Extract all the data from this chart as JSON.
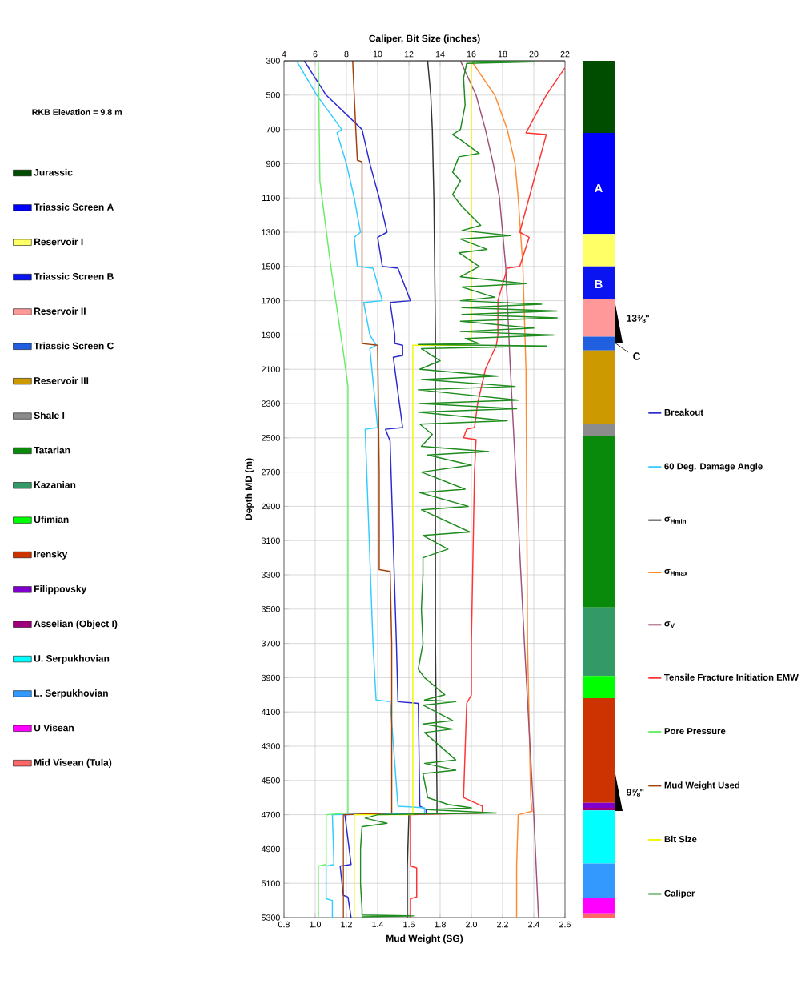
{
  "chart_data": [
    {
      "type": "line",
      "xlabel": "Mud Weight (SG)",
      "ylabel": "Depth MD (m)",
      "x2label": "Caliper, Bit Size (inches)",
      "xlim": [
        0.8,
        2.6
      ],
      "xticks": [
        0.8,
        {
          "value": 1.0,
          "label": "1.0"
        },
        1.2,
        1.4,
        1.6,
        1.8,
        {
          "value": 2.0,
          "label": "2.0"
        },
        2.2,
        2.4,
        2.6
      ],
      "x2lim": [
        4,
        22
      ],
      "x2ticks": [
        4,
        6,
        8,
        10,
        12,
        14,
        16,
        18,
        20,
        22
      ],
      "ylim": [
        5300,
        300
      ],
      "yticks": [
        300,
        500,
        700,
        900,
        1100,
        1300,
        1500,
        1700,
        1900,
        2100,
        2300,
        2500,
        2700,
        2900,
        3100,
        3300,
        3500,
        3700,
        3900,
        4100,
        4300,
        4500,
        4700,
        4900,
        5100,
        5300
      ],
      "grid": true,
      "legend": "right",
      "series": [
        {
          "name": "Breakout",
          "color": "#2a2ad0",
          "x": [
            0.93,
            1.07,
            1.3,
            1.35,
            1.41,
            1.46,
            1.4,
            1.43,
            1.53,
            1.61,
            1.48,
            1.51,
            1.51,
            1.56,
            1.56,
            1.5,
            1.56,
            1.45,
            1.48,
            1.48,
            1.52,
            1.53,
            1.66,
            1.67,
            1.71,
            1.71,
            1.19,
            1.23,
            1.16,
            1.18,
            1.21,
            1.23
          ],
          "values": [
            300,
            500,
            700,
            900,
            1100,
            1300,
            1330,
            1500,
            1510,
            1700,
            1710,
            1900,
            1950,
            1960,
            2020,
            2030,
            2440,
            2450,
            2520,
            2530,
            3700,
            4040,
            4050,
            4650,
            4670,
            4690,
            4700,
            4990,
            5000,
            5170,
            5180,
            5300
          ]
        },
        {
          "name": "60 Deg. Damage Angle",
          "color": "#33ccff",
          "x": [
            0.88,
            1.01,
            1.17,
            1.14,
            1.2,
            1.25,
            1.29,
            1.25,
            1.27,
            1.37,
            1.43,
            1.31,
            1.35,
            1.39,
            1.35,
            1.4,
            1.32,
            1.37,
            1.39,
            1.48,
            1.53,
            1.7,
            1.7,
            1.11,
            1.12,
            1.07,
            1.07,
            1.11,
            1.11
          ],
          "values": [
            300,
            500,
            700,
            720,
            900,
            1100,
            1300,
            1330,
            1500,
            1510,
            1700,
            1710,
            1900,
            1960,
            1980,
            2440,
            2450,
            3700,
            4030,
            4040,
            4650,
            4660,
            4690,
            4700,
            4990,
            5000,
            5190,
            5200,
            5300
          ]
        },
        {
          "name": "σ$_{Hmin}$",
          "color": "#333333",
          "x": [
            1.72,
            1.74,
            1.75,
            1.76,
            1.77,
            1.77,
            1.78,
            1.78,
            1.6,
            1.59,
            1.59
          ],
          "values": [
            300,
            500,
            700,
            1100,
            1900,
            3700,
            4600,
            4690,
            4700,
            5000,
            5300
          ]
        },
        {
          "name": "σ$_{Hmax}$",
          "color": "#ff8c33",
          "x": [
            2.0,
            2.15,
            2.23,
            2.28,
            2.3,
            2.33,
            2.35,
            2.36,
            2.38,
            2.39,
            2.3,
            2.29,
            2.29
          ],
          "values": [
            300,
            500,
            700,
            900,
            1100,
            1500,
            2100,
            3700,
            4600,
            4680,
            4700,
            5000,
            5300
          ]
        },
        {
          "name": "σ$_{V}$",
          "color": "#a0527a",
          "x": [
            1.93,
            2.03,
            2.09,
            2.14,
            2.18,
            2.22,
            2.25,
            2.34,
            2.4,
            2.43
          ],
          "values": [
            300,
            500,
            700,
            900,
            1100,
            1500,
            2100,
            3700,
            4700,
            5300
          ]
        },
        {
          "name": "Tensile Fracture Initiation EMW",
          "color": "#ff3333",
          "x": [
            2.6,
            2.48,
            2.35,
            2.48,
            2.31,
            2.37,
            2.31,
            2.23,
            2.17,
            2.17,
            2.16,
            2.09,
            2.04,
            2.02,
            1.97,
            1.95,
            2.03,
            2.02,
            2.0,
            2.0,
            1.97,
            1.95,
            2.07,
            2.07,
            1.61,
            1.61,
            1.65,
            1.65,
            1.61,
            1.61
          ],
          "values": [
            340,
            500,
            720,
            730,
            1300,
            1330,
            1500,
            1510,
            1700,
            1900,
            1960,
            2100,
            2300,
            2440,
            2450,
            2500,
            2510,
            2700,
            3700,
            4000,
            4050,
            4600,
            4650,
            4690,
            4700,
            5000,
            5010,
            5180,
            5190,
            5300
          ]
        },
        {
          "name": "Pore Pressure",
          "color": "#66ee66",
          "x": [
            1.02,
            1.03,
            1.1,
            1.18,
            1.21,
            1.21,
            1.07,
            1.07,
            1.02,
            1.02
          ],
          "values": [
            300,
            1000,
            1500,
            2000,
            2200,
            4690,
            4700,
            4990,
            5000,
            5300
          ]
        },
        {
          "name": "Mud Weight Used",
          "color": "#a0400a",
          "x": [
            1.24,
            1.26,
            1.27,
            1.3,
            1.3,
            1.4,
            1.41,
            1.41,
            1.48,
            1.49,
            1.49,
            1.18,
            1.18
          ],
          "values": [
            300,
            700,
            880,
            890,
            1950,
            1960,
            2700,
            3270,
            3280,
            3700,
            4690,
            4700,
            5300
          ]
        },
        {
          "name": "Bit Size",
          "color": "#f5f500",
          "axis": "x2",
          "x": [
            16,
            16,
            12.25,
            12.25,
            8.5,
            8.5
          ],
          "values": [
            300,
            1960,
            1960,
            4700,
            4700,
            5300
          ]
        },
        {
          "name": "Caliper",
          "color": "#1e8c1e",
          "axis": "x2",
          "x": [
            16.0,
            20.0,
            15.7,
            15.5,
            15.6,
            15.3,
            14.8,
            15.3,
            16.5,
            15.2,
            14.8,
            15.3,
            14.8,
            15.4,
            16.6,
            15.4,
            18.5,
            15.3,
            17.0,
            15.2,
            16.5,
            15.3,
            19.5,
            15.4,
            17.5,
            15.3,
            20.5,
            15.4,
            21.5,
            15.4,
            21.5,
            15.3,
            20.0,
            15.3,
            21.3,
            15.6,
            16.5,
            12.6,
            20.8,
            12.8,
            14.0,
            12.7,
            17.7,
            12.8,
            18.8,
            12.6,
            19.0,
            12.7,
            18.9,
            12.6,
            18.3,
            12.7,
            13.5,
            12.8,
            17.1,
            13.2,
            16.0,
            12.8,
            15.6,
            12.7,
            15.8,
            12.8,
            15.9,
            12.9,
            14.5,
            12.9,
            12.9,
            12.8,
            12.9,
            12.6,
            13.0,
            14.3,
            13.0,
            15.0,
            12.9,
            14.8,
            12.9,
            14.8,
            13.0,
            15.0,
            13.0,
            15.0,
            12.9,
            13.2,
            14.5,
            16.0,
            13.2,
            17.6,
            10.0,
            9.2,
            10.6,
            9.0,
            8.9,
            8.9,
            9.0,
            9.0,
            12.3,
            9.0,
            9.0
          ],
          "values": [
            300,
            306,
            315,
            400,
            560,
            700,
            730,
            760,
            840,
            860,
            950,
            1000,
            1080,
            1150,
            1260,
            1290,
            1320,
            1340,
            1400,
            1420,
            1500,
            1560,
            1600,
            1620,
            1680,
            1700,
            1720,
            1740,
            1760,
            1780,
            1800,
            1820,
            1860,
            1880,
            1900,
            1920,
            1950,
            1955,
            1965,
            1980,
            2050,
            2100,
            2140,
            2160,
            2200,
            2220,
            2280,
            2300,
            2330,
            2350,
            2400,
            2420,
            2480,
            2550,
            2580,
            2600,
            2660,
            2700,
            2800,
            2820,
            2900,
            2920,
            3050,
            3070,
            3150,
            3200,
            3300,
            3500,
            3700,
            3850,
            3900,
            4000,
            4030,
            4040,
            4060,
            4150,
            4170,
            4200,
            4220,
            4380,
            4400,
            4440,
            4460,
            4600,
            4640,
            4660,
            4670,
            4690,
            4700,
            4720,
            4750,
            4770,
            4900,
            5100,
            5250,
            5285,
            5290,
            5295,
            5300
          ]
        }
      ]
    },
    {
      "type": "bar",
      "categories": [
        null
      ],
      "ylim": [
        5300,
        300
      ],
      "tick_labels": false,
      "legend": "left",
      "annotations": [
        "RKB Elevation = 9.8 m",
        "A",
        "B",
        "C",
        "13⅜\"",
        "9⅝\""
      ],
      "series": [
        {
          "name": "Jurassic",
          "color": "#004d00",
          "base": [
            300
          ],
          "values": [
            420
          ]
        },
        {
          "name": "Triassic Screen A",
          "color": "#0000ff",
          "base": [
            720
          ],
          "values": [
            590
          ]
        },
        {
          "name": "Reservoir I",
          "color": "#ffff66",
          "base": [
            1310
          ],
          "values": [
            190
          ]
        },
        {
          "name": "Triassic Screen B",
          "color": "#0a14f0",
          "base": [
            1500
          ],
          "values": [
            190
          ]
        },
        {
          "name": "Reservoir II",
          "color": "#ff9999",
          "base": [
            1690
          ],
          "values": [
            220
          ]
        },
        {
          "name": "Triassic Screen C",
          "color": "#1f5fe0",
          "base": [
            1910
          ],
          "values": [
            80
          ]
        },
        {
          "name": "Reservoir III",
          "color": "#cc9900",
          "base": [
            1990
          ],
          "values": [
            430
          ]
        },
        {
          "name": "Shale I",
          "color": "#8c8c8c",
          "base": [
            2420
          ],
          "values": [
            70
          ]
        },
        {
          "name": "Tatarian",
          "color": "#0a8a0a",
          "base": [
            2490
          ],
          "values": [
            1000
          ]
        },
        {
          "name": "Kazanian",
          "color": "#339966",
          "base": [
            3490
          ],
          "values": [
            400
          ]
        },
        {
          "name": "Ufimian",
          "color": "#00ff00",
          "base": [
            3890
          ],
          "values": [
            130
          ]
        },
        {
          "name": "Irensky",
          "color": "#cc3300",
          "base": [
            4020
          ],
          "values": [
            610
          ]
        },
        {
          "name": "Filippovsky",
          "color": "#7f00cc",
          "base": [
            4630
          ],
          "values": [
            30
          ]
        },
        {
          "name": "Asselian (Object I)",
          "color": "#a0007a",
          "base": [
            4660
          ],
          "values": [
            15
          ]
        },
        {
          "name": "U. Serpukhovian",
          "color": "#00ffff",
          "base": [
            4675
          ],
          "values": [
            310
          ]
        },
        {
          "name": "L. Serpukhovian",
          "color": "#3399ff",
          "base": [
            4985
          ],
          "values": [
            200
          ]
        },
        {
          "name": "U Visean",
          "color": "#ff00ff",
          "base": [
            5185
          ],
          "values": [
            90
          ]
        },
        {
          "name": "Mid Visean (Tula)",
          "color": "#ff6666",
          "base": [
            5275
          ],
          "values": [
            25
          ]
        }
      ]
    }
  ]
}
